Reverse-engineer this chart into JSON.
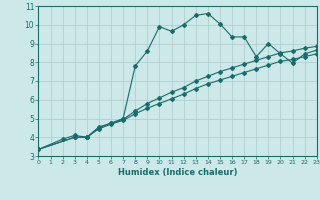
{
  "xlabel": "Humidex (Indice chaleur)",
  "bg_color": "#cce8e8",
  "line_color": "#1a6b6b",
  "grid_color": "#aacccc",
  "ylim": [
    3,
    11
  ],
  "xlim": [
    0,
    23
  ],
  "yticks": [
    3,
    4,
    5,
    6,
    7,
    8,
    9,
    10,
    11
  ],
  "xticks": [
    0,
    1,
    2,
    3,
    4,
    5,
    6,
    7,
    8,
    9,
    10,
    11,
    12,
    13,
    14,
    15,
    16,
    17,
    18,
    19,
    20,
    21,
    22,
    23
  ],
  "line1_x": [
    0,
    2,
    3,
    4,
    5,
    6,
    7,
    8,
    9,
    10,
    11,
    12,
    13,
    14,
    15,
    16,
    17,
    18,
    19,
    20,
    21,
    22,
    23
  ],
  "line1_y": [
    3.35,
    3.9,
    4.1,
    4.0,
    4.55,
    4.75,
    5.0,
    7.8,
    8.6,
    9.9,
    9.65,
    10.0,
    10.5,
    10.6,
    10.05,
    9.35,
    9.35,
    8.3,
    9.0,
    8.45,
    7.95,
    8.45,
    8.65
  ],
  "line2_x": [
    0,
    3,
    4,
    5,
    6,
    7,
    8,
    9,
    10,
    11,
    12,
    13,
    14,
    15,
    16,
    17,
    18,
    19,
    20,
    21,
    22,
    23
  ],
  "line2_y": [
    3.35,
    4.0,
    4.0,
    4.5,
    4.75,
    4.95,
    5.4,
    5.8,
    6.1,
    6.4,
    6.65,
    7.0,
    7.25,
    7.5,
    7.7,
    7.9,
    8.1,
    8.3,
    8.5,
    8.6,
    8.75,
    8.85
  ],
  "line3_x": [
    0,
    3,
    4,
    5,
    6,
    7,
    8,
    9,
    10,
    11,
    12,
    13,
    14,
    15,
    16,
    17,
    18,
    19,
    20,
    21,
    22,
    23
  ],
  "line3_y": [
    3.35,
    4.0,
    4.0,
    4.45,
    4.7,
    4.9,
    5.25,
    5.55,
    5.8,
    6.05,
    6.3,
    6.6,
    6.85,
    7.05,
    7.25,
    7.45,
    7.65,
    7.85,
    8.05,
    8.15,
    8.3,
    8.45
  ]
}
